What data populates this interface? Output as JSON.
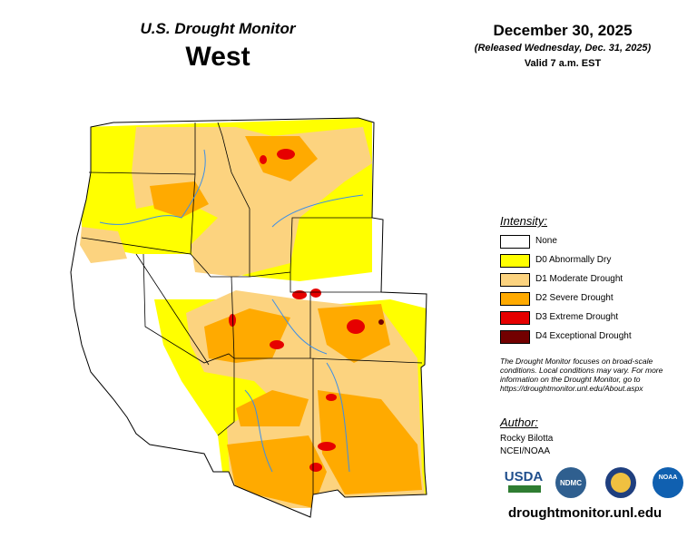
{
  "header": {
    "title": "U.S. Drought Monitor",
    "region": "West",
    "date": "December 30, 2025",
    "released": "(Released Wednesday, Dec. 31, 2025)",
    "valid": "Valid 7 a.m. EST"
  },
  "legend": {
    "title": "Intensity:",
    "items": [
      {
        "label": "None",
        "color": "#ffffff"
      },
      {
        "label": "D0 Abnormally Dry",
        "color": "#ffff00"
      },
      {
        "label": "D1 Moderate Drought",
        "color": "#fcd37f"
      },
      {
        "label": "D2 Severe Drought",
        "color": "#ffaa00"
      },
      {
        "label": "D3 Extreme Drought",
        "color": "#e60000"
      },
      {
        "label": "D4 Exceptional Drought",
        "color": "#730000"
      }
    ]
  },
  "note": "The Drought Monitor focuses on broad-scale conditions. Local conditions may vary. For more information on the Drought Monitor, go to https://droughtmonitor.unl.edu/About.aspx",
  "author": {
    "title": "Author:",
    "name": "Rocky Bilotta",
    "org": "NCEI/NOAA"
  },
  "logos": {
    "usda": "USDA",
    "ndmc": "NDMC",
    "noaa": "NOAA"
  },
  "url": "droughtmonitor.unl.edu"
}
